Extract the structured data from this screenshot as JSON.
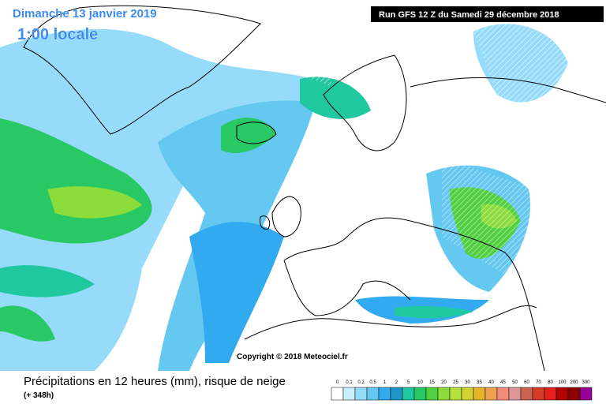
{
  "header": {
    "date": "Dimanche 13 janvier 2019",
    "time": "1:00 locale",
    "run": "Run GFS 12 Z du Samedi 29 décembre 2018"
  },
  "copyright": "Copyright © 2018 Meteociel.fr",
  "footer": {
    "title": "Précipitations en 12 heures (mm), risque de neige",
    "lead": "(+ 348h)"
  },
  "legend": [
    {
      "label": "0",
      "color": "#ffffff"
    },
    {
      "label": "0.1",
      "color": "#c8f0fa"
    },
    {
      "label": "0.2",
      "color": "#96dcfa"
    },
    {
      "label": "0.5",
      "color": "#64c8f0"
    },
    {
      "label": "1",
      "color": "#32aaf0"
    },
    {
      "label": "2",
      "color": "#1e96c8"
    },
    {
      "label": "5",
      "color": "#20c8a0"
    },
    {
      "label": "10",
      "color": "#28c864"
    },
    {
      "label": "15",
      "color": "#50d040"
    },
    {
      "label": "20",
      "color": "#8cdc3c"
    },
    {
      "label": "25",
      "color": "#b4e03c"
    },
    {
      "label": "30",
      "color": "#d2d232"
    },
    {
      "label": "35",
      "color": "#e6b428"
    },
    {
      "label": "40",
      "color": "#f0a050"
    },
    {
      "label": "45",
      "color": "#f08c78"
    },
    {
      "label": "50",
      "color": "#dc9696"
    },
    {
      "label": "60",
      "color": "#c86450"
    },
    {
      "label": "70",
      "color": "#d23c28"
    },
    {
      "label": "80",
      "color": "#e61e1e"
    },
    {
      "label": "100",
      "color": "#b40000"
    },
    {
      "label": "200",
      "color": "#8c0000"
    },
    {
      "label": "300",
      "color": "#960096"
    }
  ]
}
